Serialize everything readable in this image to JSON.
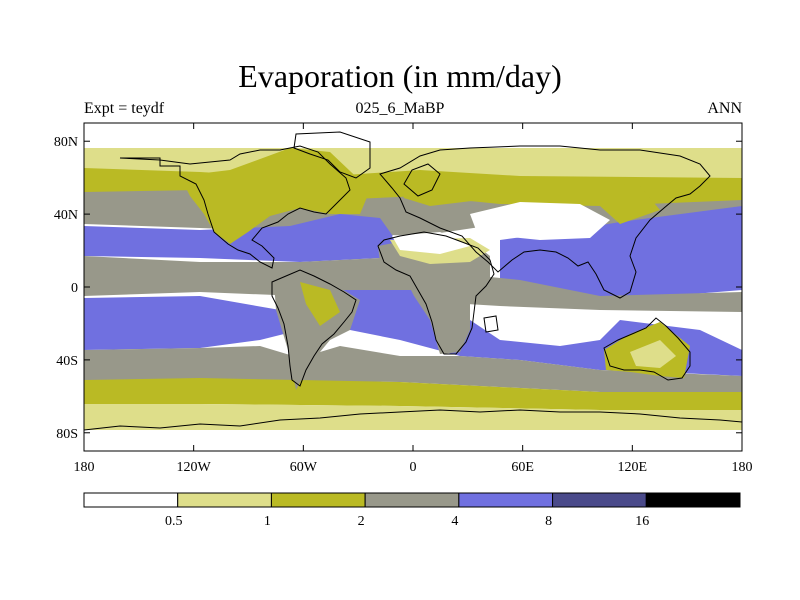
{
  "title": "Evaporation (in mm/day)",
  "subtitle_left": "Expt = teydf",
  "subtitle_center": "025_6_MaBP",
  "subtitle_right": "ANN",
  "map": {
    "lon_range": [
      -180,
      180
    ],
    "lat_range": [
      -90,
      90
    ],
    "lon_ticks": [
      "180",
      "120W",
      "60W",
      "0",
      "60E",
      "120E",
      "180"
    ],
    "lat_ticks": [
      "80N",
      "40N",
      "0",
      "40S",
      "80S"
    ]
  },
  "colorbar": {
    "colors": [
      "#ffffff",
      "#dede8a",
      "#baba24",
      "#98988a",
      "#7070e0",
      "#4a4a8a",
      "#000000"
    ],
    "labels": [
      "0.5",
      "1",
      "2",
      "4",
      "8",
      "16"
    ]
  }
}
